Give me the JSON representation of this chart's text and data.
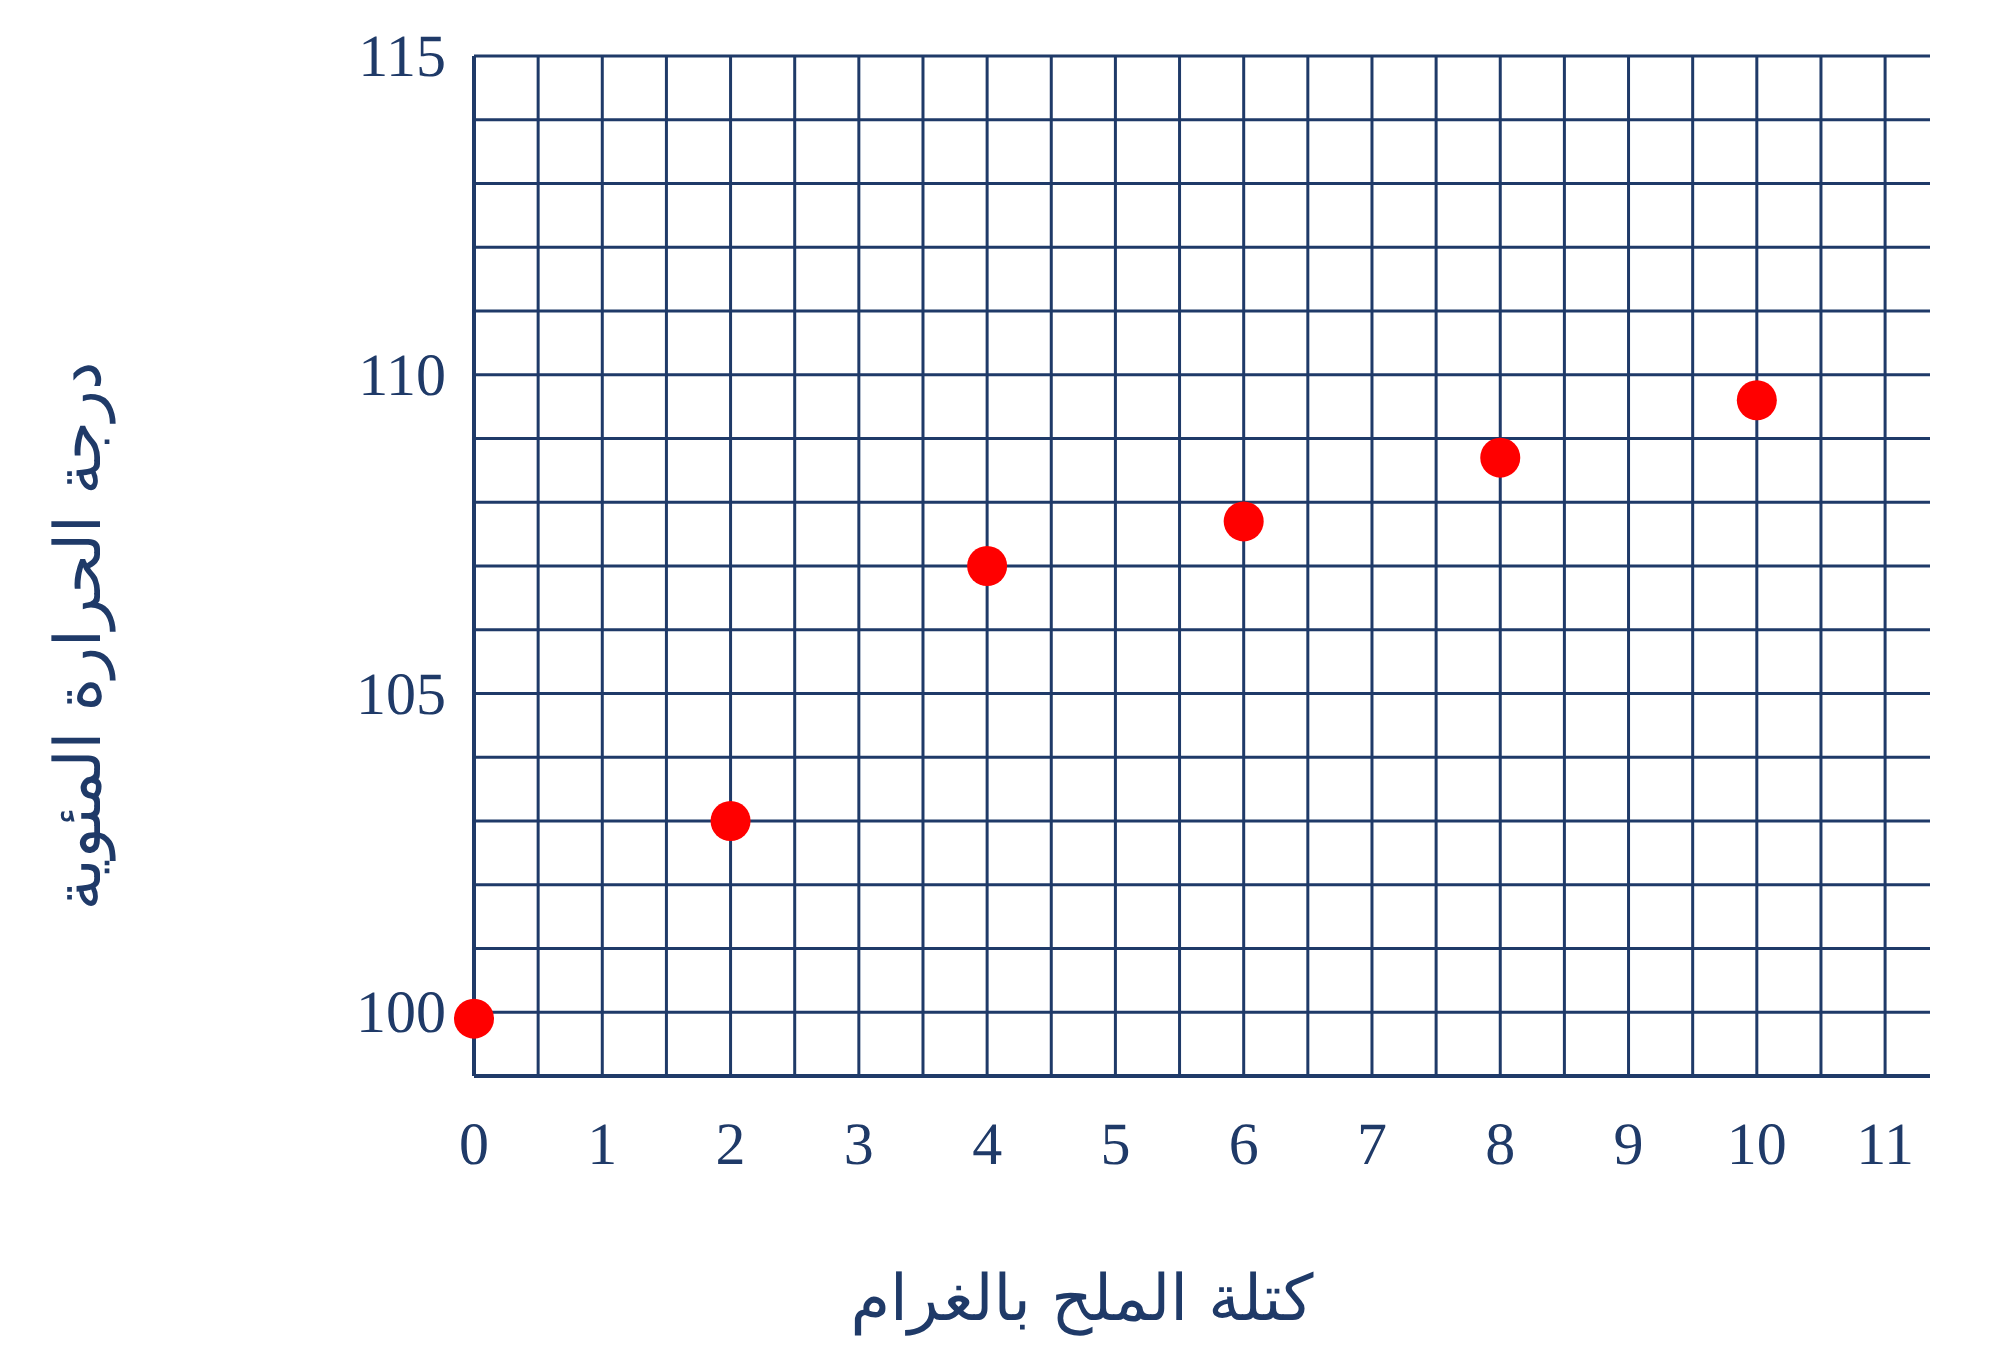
{
  "chart_data": {
    "type": "scatter",
    "xlabel": "كتلة الملح بالغرام",
    "ylabel": "درجة الحرارة المئوية",
    "x": [
      0,
      2,
      4,
      6,
      8,
      10
    ],
    "values": [
      99.9,
      103,
      107,
      107.7,
      108.7,
      109.6
    ],
    "color": "#ff0000",
    "marker": "circle",
    "xlim": [
      0,
      11.35
    ],
    "ylim": [
      99,
      115
    ],
    "xticks": [
      0,
      1,
      2,
      3,
      4,
      5,
      6,
      7,
      8,
      9,
      10,
      11
    ],
    "yticks": [
      100,
      105,
      110,
      115
    ],
    "grid": true
  }
}
